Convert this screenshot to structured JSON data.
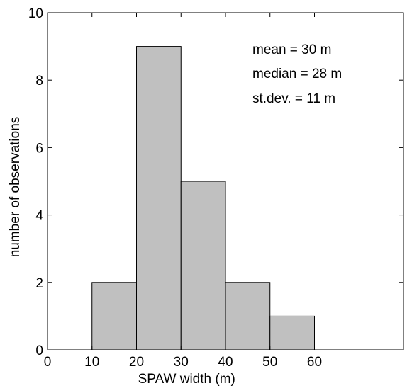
{
  "chart_data": {
    "type": "bar",
    "title": "",
    "xlabel": "SPAW width (m)",
    "ylabel": "number of observations",
    "xlim": [
      0,
      80
    ],
    "ylim": [
      0,
      10
    ],
    "x_ticks": [
      0,
      10,
      20,
      30,
      40,
      50,
      60
    ],
    "y_ticks": [
      0,
      2,
      4,
      6,
      8,
      10
    ],
    "bins": [
      {
        "start": 10,
        "end": 20,
        "count": 2
      },
      {
        "start": 20,
        "end": 30,
        "count": 9
      },
      {
        "start": 30,
        "end": 40,
        "count": 5
      },
      {
        "start": 40,
        "end": 50,
        "count": 2
      },
      {
        "start": 50,
        "end": 60,
        "count": 1
      },
      {
        "start": 60,
        "end": 70,
        "count": 0
      }
    ],
    "bar_color": "#c0c0c0",
    "grid": false,
    "annotations": [
      "mean = 30 m",
      "median = 28 m",
      "st.dev. = 11 m"
    ]
  }
}
